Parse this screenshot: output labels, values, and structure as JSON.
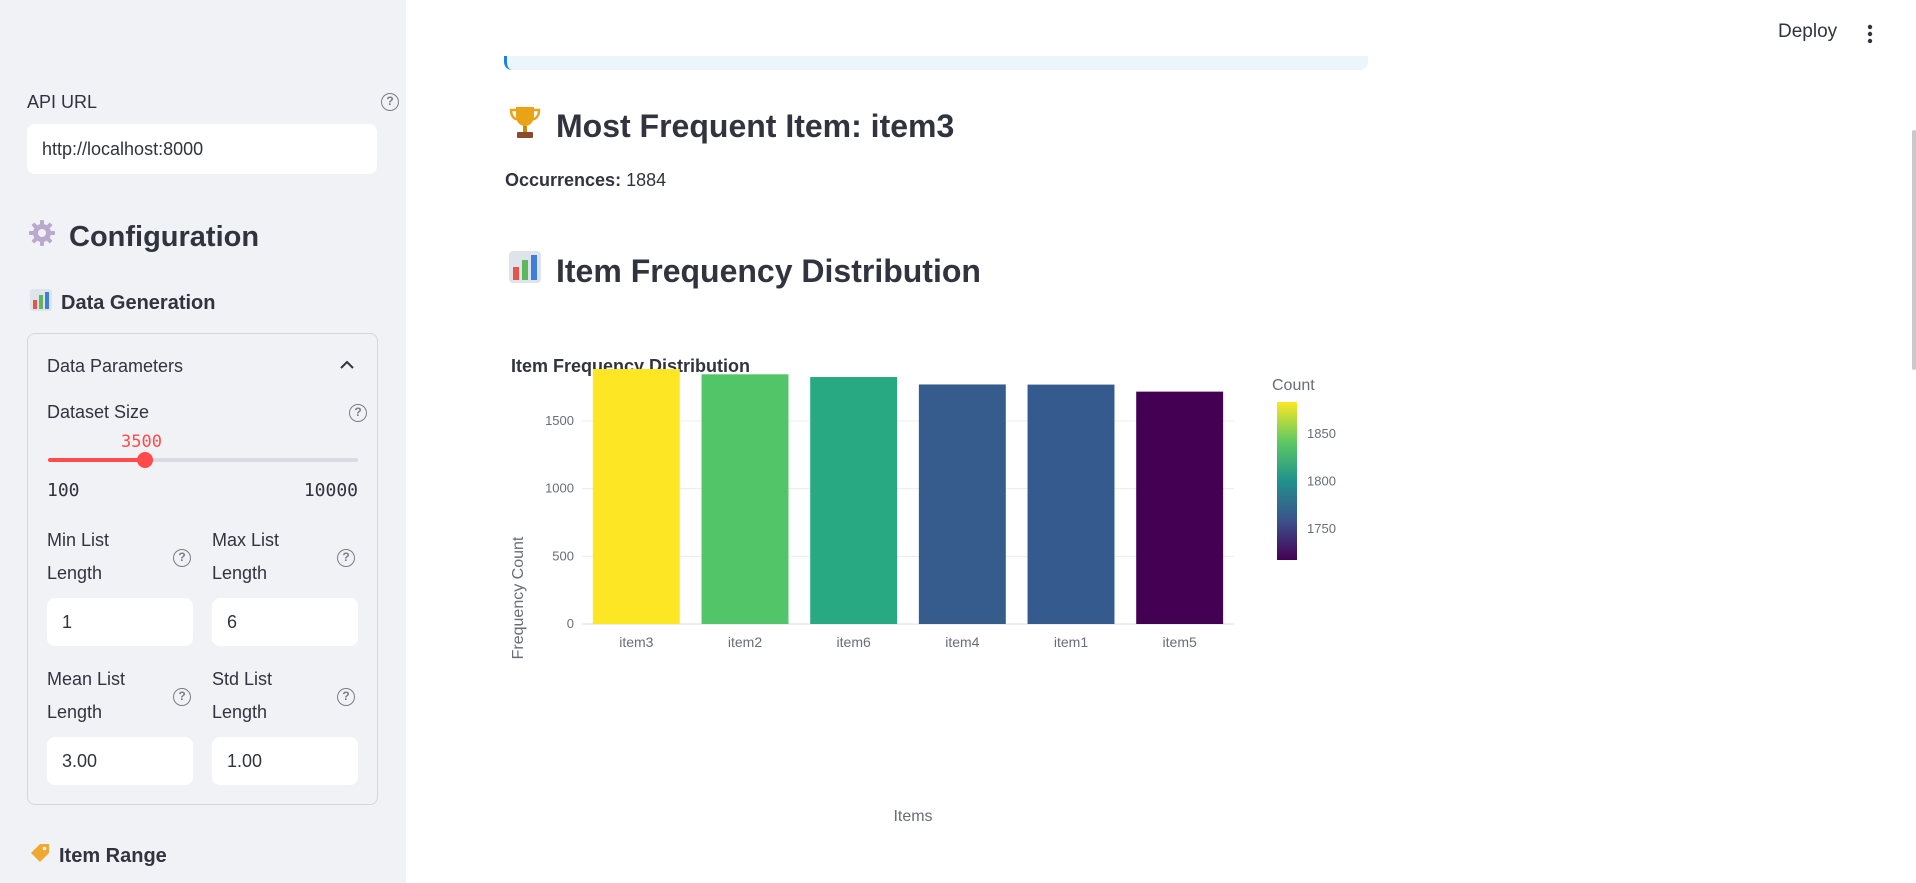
{
  "sidebar": {
    "api_url_label": "API URL",
    "api_url_value": "http://localhost:8000",
    "config_title": "Configuration",
    "data_generation_title": "Data Generation",
    "expander_title": "Data Parameters",
    "dataset_size": {
      "label": "Dataset Size",
      "value": "3500",
      "min": "100",
      "max": "10000",
      "fraction": 0.3131
    },
    "min_list_length": {
      "label_line1": "Min List",
      "label_line2": "Length",
      "value": "1"
    },
    "max_list_length": {
      "label_line1": "Max List",
      "label_line2": "Length",
      "value": "6"
    },
    "mean_list_length": {
      "label_line1": "Mean List",
      "label_line2": "Length",
      "value": "3.00"
    },
    "std_list_length": {
      "label_line1": "Std List",
      "label_line2": "Length",
      "value": "1.00"
    },
    "item_range_title": "Item Range"
  },
  "header": {
    "deploy_label": "Deploy"
  },
  "main": {
    "most_frequent_heading": "Most Frequent Item: item3",
    "occurrences_label": "Occurrences:",
    "occurrences_value": "1884",
    "distribution_heading": "Item Frequency Distribution"
  },
  "icons": {
    "trophy": "trophy-icon",
    "chart": "bar-chart-icon",
    "gear": "gear-icon",
    "tag": "tag-icon"
  },
  "colors": {
    "accent": "#ff4b4b",
    "sidebar_bg": "#f0f2f6"
  },
  "chart_data": {
    "type": "bar",
    "title": "Item Frequency Distribution",
    "xlabel": "Items",
    "ylabel": "Frequency Count",
    "categories": [
      "item3",
      "item2",
      "item6",
      "item4",
      "item1",
      "item5"
    ],
    "values": [
      1884,
      1845,
      1825,
      1770,
      1769,
      1717
    ],
    "bar_colors": [
      "#fde725",
      "#52c569",
      "#29a982",
      "#365c8d",
      "#355b8e",
      "#440154"
    ],
    "ylim": [
      0,
      1900
    ],
    "yticks": [
      0,
      500,
      1000,
      1500
    ],
    "grid": true,
    "colorbar": {
      "title": "Count",
      "ticks": [
        1750,
        1800,
        1850
      ],
      "range": [
        1717,
        1884
      ],
      "stops": [
        "#440154",
        "#3b528b",
        "#21918c",
        "#5ec962",
        "#fde725"
      ]
    }
  }
}
